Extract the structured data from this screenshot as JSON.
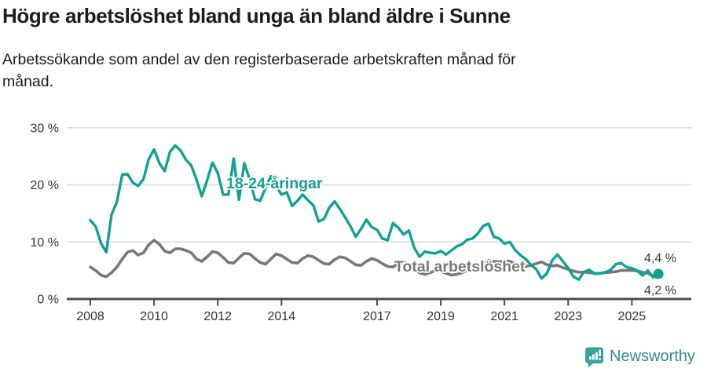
{
  "header": {
    "title": "Högre arbetslöshet bland unga än bland äldre i Sunne",
    "subtitle_line1": "Arbetssökande som andel av den registerbaserade arbetskraften månad för",
    "subtitle_line2": "månad."
  },
  "chart_data": {
    "type": "line",
    "title": "Högre arbetslöshet bland unga än bland äldre i Sunne",
    "subtitle": "Arbetssökande som andel av den registerbaserade arbetskraften månad för månad.",
    "x_unit": "decimal years (bimonthly samples of monthly data)",
    "x_start": 2008.0,
    "x_step": 0.1666667,
    "xlim": [
      2007.25,
      2026.9
    ],
    "ylim": [
      0,
      30
    ],
    "y_ticks": [
      0,
      10,
      20,
      30
    ],
    "y_tick_suffix": " %",
    "x_ticks": [
      2008,
      2010,
      2012,
      2014,
      2017,
      2019,
      2021,
      2023,
      2025
    ],
    "grid": "horizontal",
    "legend_position": "inline-labels",
    "series": [
      {
        "name": "18-24-åringar",
        "color": "#12a095",
        "end_value_label": "4,4 %",
        "end_dot": true,
        "values": [
          13.8,
          12.7,
          9.8,
          8.2,
          14.8,
          17.0,
          21.8,
          21.9,
          20.4,
          19.8,
          21.0,
          24.5,
          26.2,
          23.8,
          22.4,
          25.8,
          26.9,
          26.0,
          24.4,
          23.4,
          20.9,
          18.0,
          20.8,
          23.9,
          22.1,
          18.3,
          18.3,
          24.6,
          17.4,
          23.8,
          21.0,
          17.5,
          17.2,
          19.5,
          21.5,
          19.8,
          18.3,
          18.7,
          16.3,
          17.2,
          18.3,
          17.3,
          16.4,
          13.6,
          14.0,
          16.0,
          17.1,
          15.8,
          14.3,
          12.7,
          10.9,
          12.3,
          13.9,
          12.6,
          12.1,
          10.6,
          10.3,
          13.3,
          12.5,
          11.3,
          12.0,
          9.0,
          7.4,
          8.3,
          8.1,
          8.0,
          8.4,
          7.8,
          8.5,
          9.2,
          9.6,
          10.4,
          10.6,
          11.5,
          12.8,
          13.2,
          10.9,
          10.6,
          9.7,
          10.0,
          8.6,
          7.7,
          7.0,
          6.0,
          5.2,
          3.6,
          4.5,
          6.8,
          7.8,
          6.6,
          5.4,
          3.9,
          3.4,
          4.8,
          5.1,
          4.4,
          4.5,
          4.7,
          5.1,
          6.1,
          6.3,
          5.6,
          5.4,
          5.0,
          4.1,
          5.0,
          3.8,
          4.4
        ]
      },
      {
        "name": "Total arbetslöshet",
        "color": "#787878",
        "end_value_label": "4,2 %",
        "end_dot": false,
        "values": [
          5.6,
          5.0,
          4.2,
          3.9,
          4.6,
          5.6,
          7.0,
          8.2,
          8.5,
          7.7,
          8.1,
          9.5,
          10.3,
          9.6,
          8.4,
          8.1,
          8.8,
          8.8,
          8.5,
          8.1,
          7.0,
          6.6,
          7.4,
          8.3,
          8.1,
          7.3,
          6.4,
          6.3,
          7.2,
          8.0,
          7.9,
          7.1,
          6.4,
          6.1,
          7.0,
          7.9,
          7.6,
          7.0,
          6.4,
          6.3,
          7.1,
          7.6,
          7.4,
          6.8,
          6.2,
          6.1,
          6.9,
          7.4,
          7.2,
          6.6,
          6.0,
          5.9,
          6.6,
          7.1,
          6.8,
          6.2,
          5.7,
          5.6,
          6.2,
          6.6,
          5.9,
          5.3,
          4.6,
          4.3,
          4.6,
          5.0,
          4.9,
          4.5,
          4.2,
          4.3,
          4.6,
          5.0,
          5.2,
          5.6,
          6.4,
          6.8,
          6.6,
          6.5,
          6.7,
          6.6,
          6.2,
          5.9,
          5.7,
          5.9,
          6.2,
          6.5,
          6.0,
          5.8,
          5.9,
          5.5,
          5.2,
          4.9,
          4.7,
          4.7,
          4.6,
          4.5,
          4.5,
          4.6,
          4.7,
          4.8,
          5.0,
          5.0,
          5.0,
          4.9,
          4.7,
          4.5,
          4.1,
          4.2
        ]
      }
    ]
  },
  "colors": {
    "accent_teal": "#12a095",
    "series_gray": "#787878",
    "axis": "#4b4b4b",
    "grid": "#dcdcdc",
    "tick_text": "#333333",
    "logo_icon": "#35a39b",
    "logo_text": "#2f8d87"
  },
  "footer": {
    "brand": "Newsworthy"
  }
}
